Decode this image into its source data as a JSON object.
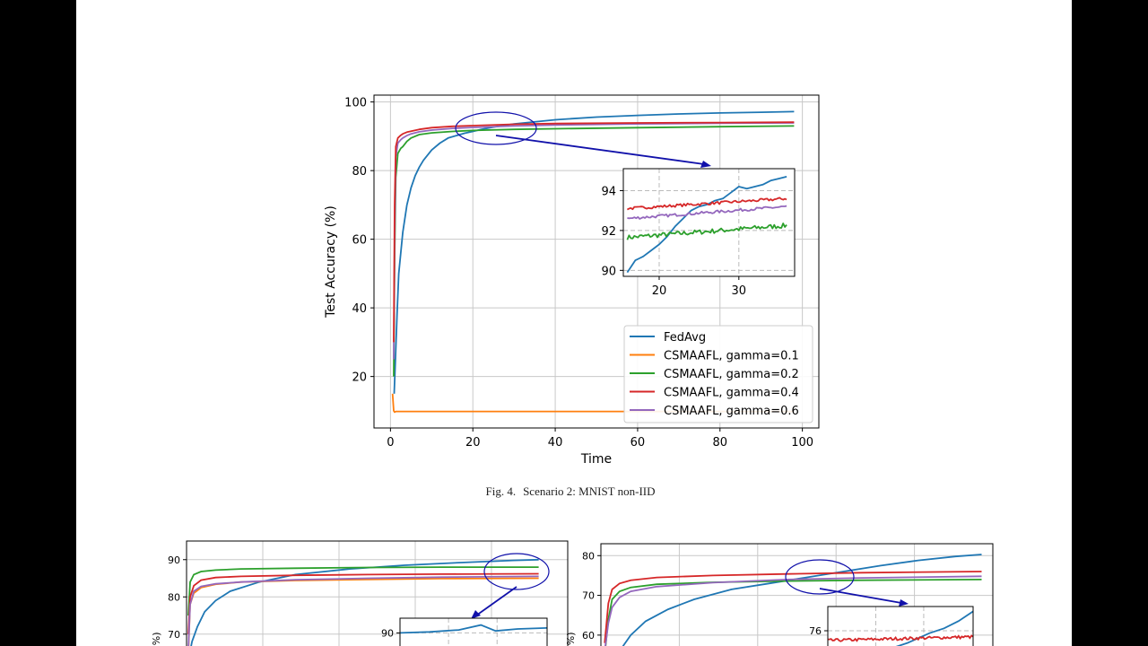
{
  "colors": {
    "fedavg": "#1f77b4",
    "g01": "#ff7f0e",
    "g02": "#2ca02c",
    "g04": "#d62728",
    "g06": "#9467bd",
    "annotation": "#1111aa",
    "grid": "#c8c8c8"
  },
  "caption": {
    "label": "Fig. 4.",
    "text": "Scenario 2: MNIST non-IID"
  },
  "chart_data": [
    {
      "type": "line",
      "xlabel": "Time",
      "ylabel": "Test Accuracy (%)",
      "xlim": [
        -4,
        104
      ],
      "ylim": [
        5,
        102
      ],
      "xticks": [
        0,
        20,
        40,
        60,
        80,
        100
      ],
      "yticks": [
        20,
        40,
        60,
        80,
        100
      ],
      "grid": true,
      "legend_position": "lower-right",
      "series": [
        {
          "name": "FedAvg",
          "key": "fedavg",
          "x": [
            0.9,
            1.2,
            1.6,
            2,
            3,
            4,
            5,
            6,
            7,
            8,
            10,
            12,
            14,
            16,
            18,
            20,
            22,
            25,
            30,
            40,
            50,
            60,
            70,
            80,
            90,
            98
          ],
          "y": [
            15,
            25,
            38,
            50,
            62,
            70,
            75,
            78.5,
            81,
            83,
            86,
            88,
            89.5,
            90.2,
            90.9,
            91.4,
            92,
            92.7,
            93.6,
            94.8,
            95.6,
            96.1,
            96.5,
            96.8,
            97,
            97.2
          ]
        },
        {
          "name": "CSMAAFL, gamma=0.1",
          "key": "g01",
          "x": [
            0.5,
            0.8,
            1,
            1.3,
            2,
            5,
            20,
            40,
            60,
            80,
            98
          ],
          "y": [
            15,
            10,
            9.6,
            9.8,
            9.8,
            9.8,
            9.8,
            9.8,
            9.8,
            9.8,
            9.8
          ]
        },
        {
          "name": "CSMAAFL, gamma=0.2",
          "key": "g02",
          "x": [
            0.8,
            1,
            1.3,
            1.8,
            2.5,
            3,
            4,
            5,
            7,
            10,
            15,
            20,
            30,
            40,
            60,
            80,
            98
          ],
          "y": [
            20,
            55,
            78,
            85,
            86.5,
            87,
            88.5,
            89.5,
            90.5,
            91,
            91.4,
            91.7,
            92,
            92.2,
            92.5,
            92.8,
            93
          ]
        },
        {
          "name": "CSMAAFL, gamma=0.4",
          "key": "g04",
          "x": [
            0.8,
            1,
            1.3,
            1.8,
            2.5,
            3,
            4,
            5,
            7,
            10,
            15,
            20,
            30,
            40,
            60,
            80,
            98
          ],
          "y": [
            30,
            70,
            87,
            89.5,
            90.3,
            90.7,
            91.2,
            91.5,
            92,
            92.5,
            92.9,
            93.1,
            93.5,
            93.7,
            93.9,
            94,
            94.1
          ]
        },
        {
          "name": "CSMAAFL, gamma=0.6",
          "key": "g06",
          "x": [
            0.8,
            1,
            1.3,
            1.8,
            2.5,
            3,
            4,
            5,
            7,
            10,
            15,
            20,
            30,
            40,
            60,
            80,
            98
          ],
          "y": [
            25,
            60,
            84,
            88,
            89,
            89.5,
            90.2,
            90.7,
            91.3,
            91.8,
            92.3,
            92.6,
            93,
            93.3,
            93.6,
            93.8,
            93.9
          ]
        }
      ],
      "inset": {
        "xlim": [
          15.5,
          37
        ],
        "ylim": [
          89.7,
          95.1
        ],
        "xticks": [
          20,
          30
        ],
        "yticks": [
          90,
          92,
          94
        ],
        "grid": true,
        "series": [
          {
            "key": "fedavg",
            "x": [
              16,
              16.5,
              17,
              17.5,
              18,
              19,
              20,
              21,
              22,
              23,
              24,
              25,
              26,
              27,
              28,
              29,
              30,
              31,
              32,
              33,
              34,
              35,
              36
            ],
            "y": [
              89.9,
              90.2,
              90.5,
              90.6,
              90.7,
              91,
              91.3,
              91.7,
              92.2,
              92.6,
              93,
              93.2,
              93.3,
              93.5,
              93.6,
              93.9,
              94.2,
              94.1,
              94.2,
              94.3,
              94.5,
              94.6,
              94.7
            ]
          },
          {
            "key": "g02",
            "x": [
              16,
              36
            ],
            "y": [
              91.65,
              92.25
            ],
            "noise": 0.12
          },
          {
            "key": "g04",
            "x": [
              16,
              36
            ],
            "y": [
              93.1,
              93.6
            ],
            "noise": 0.07
          },
          {
            "key": "g06",
            "x": [
              16,
              36
            ],
            "y": [
              92.6,
              93.2
            ],
            "noise": 0.07
          }
        ]
      }
    },
    {
      "type": "line",
      "ylabel": "(%)",
      "ylim": [
        62,
        95
      ],
      "xlim": [
        0,
        105
      ],
      "yticks": [
        70,
        80,
        90
      ],
      "xgrid": [
        21,
        42,
        63,
        84
      ],
      "grid": true,
      "series": [
        {
          "key": "fedavg",
          "x": [
            0.5,
            1.5,
            3,
            5,
            8,
            12,
            20,
            30,
            45,
            60,
            75,
            90,
            97
          ],
          "y": [
            63,
            68,
            72,
            76,
            79,
            81.5,
            84,
            86,
            87.5,
            88.5,
            89.2,
            89.8,
            90
          ]
        },
        {
          "key": "g01",
          "x": [
            0.5,
            1,
            2,
            4,
            8,
            15,
            30,
            50,
            70,
            97
          ],
          "y": [
            65,
            78,
            81,
            82.5,
            83.4,
            84,
            84.4,
            84.7,
            84.9,
            85
          ]
        },
        {
          "key": "g02",
          "x": [
            0.5,
            1,
            2,
            4,
            8,
            15,
            30,
            50,
            70,
            97
          ],
          "y": [
            75,
            84,
            86,
            86.8,
            87.2,
            87.5,
            87.7,
            87.9,
            88,
            88
          ]
        },
        {
          "key": "g04",
          "x": [
            0.5,
            1,
            2,
            4,
            8,
            15,
            30,
            50,
            70,
            97
          ],
          "y": [
            70,
            80,
            83,
            84.5,
            85.2,
            85.5,
            85.8,
            86,
            86.1,
            86.2
          ]
        },
        {
          "key": "g06",
          "x": [
            0.5,
            1,
            2,
            4,
            8,
            15,
            30,
            50,
            70,
            97
          ],
          "y": [
            66,
            78,
            81.5,
            82.8,
            83.5,
            84,
            84.6,
            85,
            85.3,
            85.5
          ]
        }
      ],
      "inset": {
        "ylim": [
          85,
          91.5
        ],
        "yticks": [
          90
        ],
        "series": [
          {
            "key": "fedavg",
            "x": [
              0,
              20,
              40,
              55,
              65,
              80,
              100
            ],
            "y": [
              90,
              90.1,
              90.3,
              90.8,
              90.2,
              90.4,
              90.5
            ]
          }
        ]
      }
    },
    {
      "type": "line",
      "ylabel": "(%)",
      "ylim": [
        55,
        83
      ],
      "xlim": [
        0,
        105
      ],
      "yticks": [
        60,
        70,
        80
      ],
      "xgrid": [
        21,
        42,
        63,
        84
      ],
      "grid": true,
      "series": [
        {
          "key": "fedavg",
          "x": [
            5,
            8,
            12,
            18,
            25,
            35,
            45,
            55,
            65,
            75,
            85,
            95,
            102
          ],
          "y": [
            56,
            60,
            63.5,
            66.5,
            69,
            71.5,
            73,
            74.5,
            76,
            77.5,
            78.8,
            79.8,
            80.3
          ]
        },
        {
          "key": "g02",
          "x": [
            1,
            2,
            3,
            5,
            8,
            15,
            30,
            50,
            70,
            102
          ],
          "y": [
            55,
            64,
            69,
            71,
            72,
            72.8,
            73.3,
            73.6,
            73.8,
            74
          ]
        },
        {
          "key": "g04",
          "x": [
            1,
            2,
            3,
            5,
            8,
            15,
            30,
            50,
            70,
            102
          ],
          "y": [
            58,
            68,
            71.5,
            73,
            73.8,
            74.5,
            75,
            75.4,
            75.7,
            76
          ]
        },
        {
          "key": "g06",
          "x": [
            1,
            2,
            3,
            5,
            8,
            15,
            30,
            50,
            70,
            102
          ],
          "y": [
            56,
            63,
            67,
            69.5,
            71,
            72.2,
            73.2,
            74,
            74.4,
            74.8
          ]
        }
      ],
      "inset": {
        "ylim": [
          75,
          77
        ],
        "yticks": [
          76
        ],
        "series": [
          {
            "key": "fedavg",
            "x": [
              40,
              55,
              70,
              80,
              90,
              100
            ],
            "y": [
              75.2,
              75.5,
              75.9,
              76.1,
              76.4,
              76.8
            ]
          },
          {
            "key": "g04",
            "x": [
              0,
              100
            ],
            "y": [
              75.6,
              75.75
            ],
            "noise": 0.06
          }
        ]
      }
    }
  ]
}
